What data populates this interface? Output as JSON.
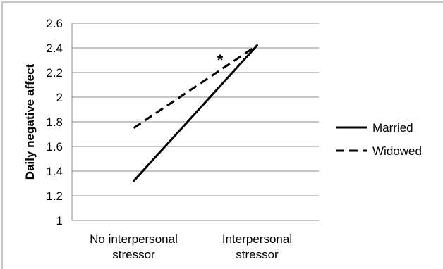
{
  "chart_data": {
    "type": "line",
    "categories": [
      [
        "No interpersonal",
        "stressor"
      ],
      [
        "Interpersonal",
        "stressor"
      ]
    ],
    "ylabel": "Daily negative affect",
    "ylim": [
      1,
      2.6
    ],
    "yticks": [
      "1",
      "1.2",
      "1.4",
      "1.6",
      "1.8",
      "2",
      "2.2",
      "2.4",
      "2.6"
    ],
    "grid": true,
    "legend_position": "right",
    "series": [
      {
        "name": "Married",
        "values": [
          1.32,
          2.42
        ],
        "line_style": "solid",
        "color": "#000000"
      },
      {
        "name": "Widowed",
        "values": [
          1.75,
          2.42
        ],
        "line_style": "dashed",
        "color": "#000000"
      }
    ],
    "annotations": [
      {
        "text": "*"
      }
    ]
  }
}
